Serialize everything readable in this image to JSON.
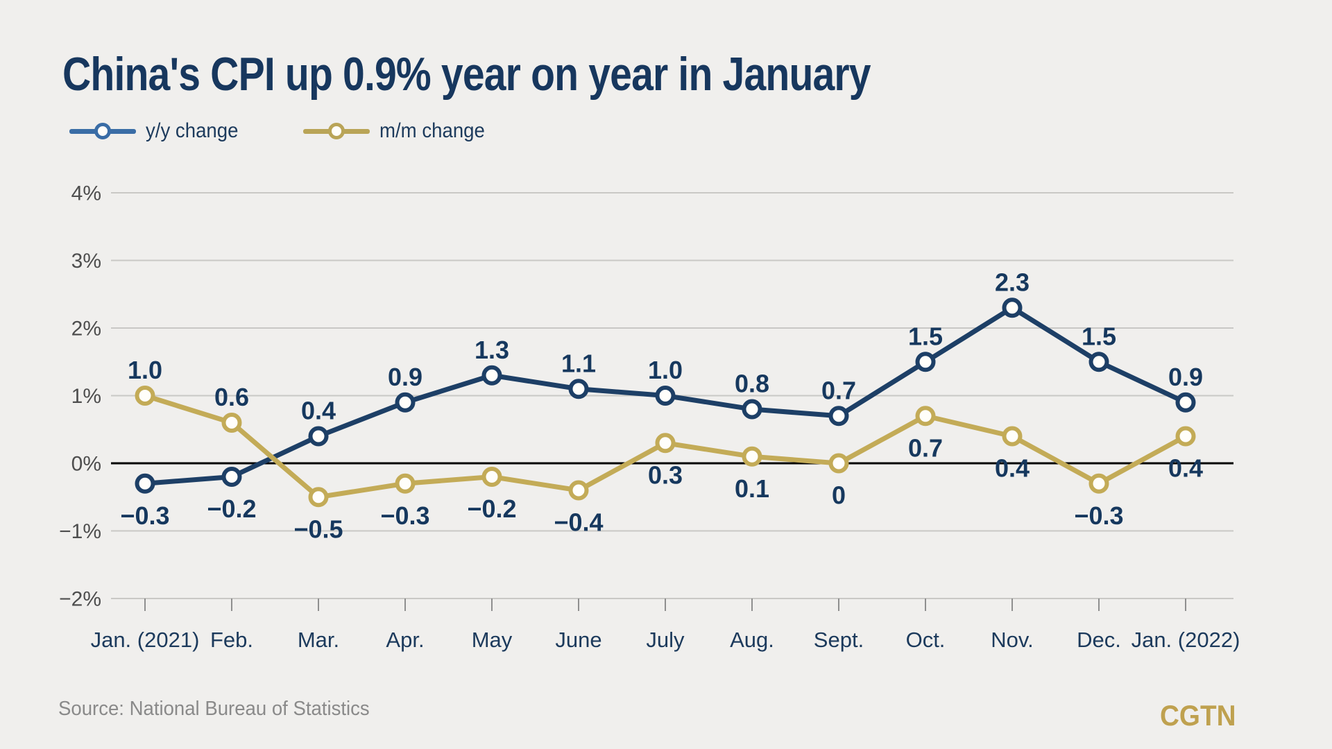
{
  "title": "China's CPI up 0.9% year on year in January",
  "source": "Source: National Bureau of Statistics",
  "logo": "CGTN",
  "legend": {
    "items": [
      {
        "label": "y/y change",
        "color": "#3a6da6"
      },
      {
        "label": "m/m change",
        "color": "#b9a457"
      }
    ]
  },
  "colors": {
    "background": "#f0efed",
    "title": "#17375e",
    "grid": "#c9c8c5",
    "zero_line": "#000000",
    "y_axis_label": "#4e4e4e",
    "month_label": "#1c3a5c",
    "value_label": "#16385e",
    "tick": "#8f8f8f",
    "marker_fill": "#fffefa",
    "source": "#8a8a8a",
    "logo": "#bfa14f"
  },
  "chart_data": {
    "type": "line",
    "title": "China's CPI up 0.9% year on year in January",
    "categories": [
      "Jan. (2021)",
      "Feb.",
      "Mar.",
      "Apr.",
      "May",
      "June",
      "July",
      "Aug.",
      "Sept.",
      "Oct.",
      "Nov.",
      "Dec.",
      "Jan. (2022)"
    ],
    "ylim": [
      -2,
      4
    ],
    "grid": true,
    "legend_position": "top-left",
    "y_ticks": [
      {
        "value": 4,
        "label": "4%"
      },
      {
        "value": 3,
        "label": "3%"
      },
      {
        "value": 2,
        "label": "2%"
      },
      {
        "value": 1,
        "label": "1%"
      },
      {
        "value": 0,
        "label": "0%"
      },
      {
        "value": -1,
        "label": "−1%"
      },
      {
        "value": -2,
        "label": "−2%"
      }
    ],
    "series": [
      {
        "name": "y/y change",
        "color": "#1d3f66",
        "values": [
          -0.3,
          -0.2,
          0.4,
          0.9,
          1.3,
          1.1,
          1.0,
          0.8,
          0.7,
          1.5,
          2.3,
          1.5,
          0.9
        ],
        "labels": [
          "−0.3",
          "−0.2",
          "0.4",
          "0.9",
          "1.3",
          "1.1",
          "1.0",
          "0.8",
          "0.7",
          "1.5",
          "2.3",
          "1.5",
          "0.9"
        ],
        "label_pos": [
          "below",
          "below",
          "above",
          "above",
          "above",
          "above",
          "above",
          "above",
          "above",
          "above",
          "above",
          "above",
          "above"
        ]
      },
      {
        "name": "m/m change",
        "color": "#c3ab57",
        "values": [
          1.0,
          0.6,
          -0.5,
          -0.3,
          -0.2,
          -0.4,
          0.3,
          0.1,
          0,
          0.7,
          0.4,
          -0.3,
          0.4
        ],
        "labels": [
          "1.0",
          "0.6",
          "−0.5",
          "−0.3",
          "−0.2",
          "−0.4",
          "0.3",
          "0.1",
          "0",
          "0.7",
          "0.4",
          "−0.3",
          "0.4"
        ],
        "label_pos": [
          "above",
          "above",
          "below",
          "below",
          "below",
          "below",
          "below",
          "below",
          "below",
          "below",
          "below",
          "below",
          "below"
        ]
      }
    ]
  }
}
